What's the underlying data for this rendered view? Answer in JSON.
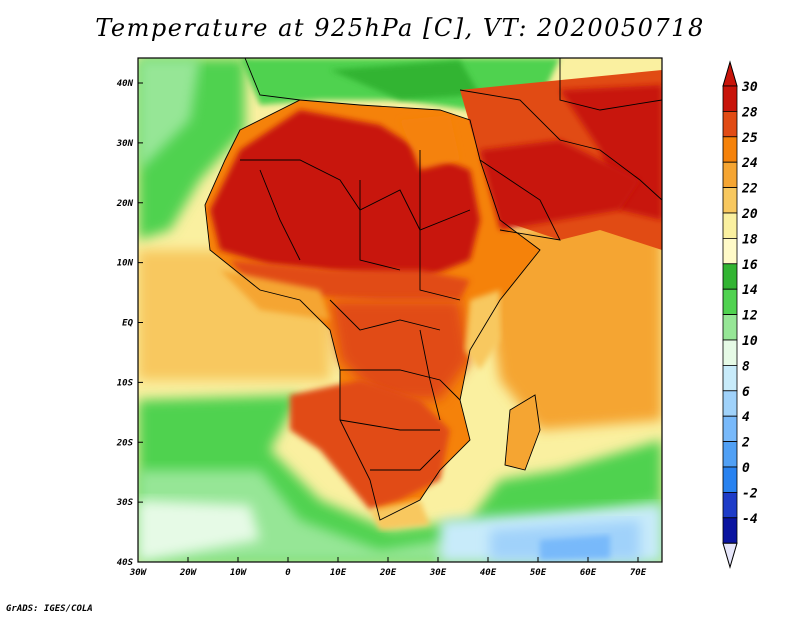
{
  "title": "Temperature at 925hPa [C], VT: 2020050718",
  "footer": "GrADS: IGES/COLA",
  "map": {
    "lon_range": [
      -30,
      75
    ],
    "lat_range": [
      -40,
      45
    ],
    "lat_ticks": [
      "40N",
      "30N",
      "20N",
      "10N",
      "EQ",
      "10S",
      "20S",
      "30S",
      "40S"
    ],
    "lon_ticks": [
      "30W",
      "20W",
      "10W",
      "0",
      "10E",
      "20E",
      "30E",
      "40E",
      "50E",
      "60E",
      "70E"
    ]
  },
  "colorbar": {
    "labels": [
      "30",
      "28",
      "25",
      "24",
      "22",
      "20",
      "18",
      "16",
      "14",
      "12",
      "10",
      "8",
      "6",
      "4",
      "2",
      "0",
      "-2",
      "-4"
    ],
    "colors": [
      "#c8140a",
      "#e14b14",
      "#f5820a",
      "#f5a532",
      "#f8c85f",
      "#faf0a0",
      "#fffac8",
      "#32b432",
      "#50d250",
      "#96e696",
      "#e6fae6",
      "#c8ebfa",
      "#a0d2fa",
      "#78b9fa",
      "#50a0f5",
      "#2882f0",
      "#1e3cc8",
      "#0a14a0"
    ],
    "top_color": "#c8140a",
    "bottom_color": "#e6e6fa"
  },
  "palette": {
    "ocean_cool": "#50d250",
    "ocean_cold": "#a0d2fa",
    "sea_mild": "#faf0a0",
    "warm": "#f5a532",
    "hot": "#e14b14",
    "very_hot": "#c8140a",
    "border": "#000000"
  }
}
